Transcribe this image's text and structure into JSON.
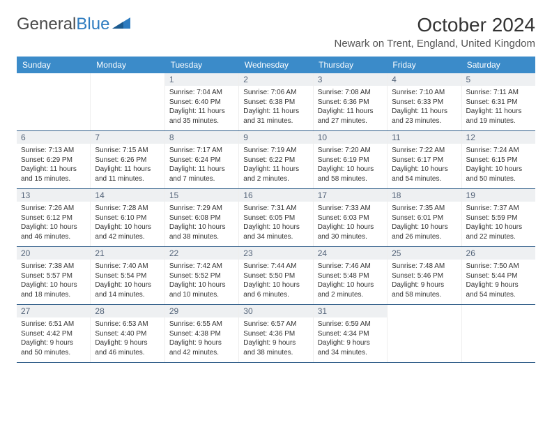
{
  "logo": {
    "text1": "General",
    "text2": "Blue"
  },
  "title": "October 2024",
  "location": "Newark on Trent, England, United Kingdom",
  "colors": {
    "header_bg": "#3b8bc9",
    "header_text": "#ffffff",
    "daynum_bg": "#eef0f2",
    "daynum_text": "#55657a",
    "week_border": "#2b5a86",
    "logo_blue": "#2e7cc0",
    "body_text": "#333333"
  },
  "dayHeaders": [
    "Sunday",
    "Monday",
    "Tuesday",
    "Wednesday",
    "Thursday",
    "Friday",
    "Saturday"
  ],
  "weeks": [
    [
      null,
      null,
      {
        "n": "1",
        "sr": "7:04 AM",
        "ss": "6:40 PM",
        "dl": "11 hours and 35 minutes."
      },
      {
        "n": "2",
        "sr": "7:06 AM",
        "ss": "6:38 PM",
        "dl": "11 hours and 31 minutes."
      },
      {
        "n": "3",
        "sr": "7:08 AM",
        "ss": "6:36 PM",
        "dl": "11 hours and 27 minutes."
      },
      {
        "n": "4",
        "sr": "7:10 AM",
        "ss": "6:33 PM",
        "dl": "11 hours and 23 minutes."
      },
      {
        "n": "5",
        "sr": "7:11 AM",
        "ss": "6:31 PM",
        "dl": "11 hours and 19 minutes."
      }
    ],
    [
      {
        "n": "6",
        "sr": "7:13 AM",
        "ss": "6:29 PM",
        "dl": "11 hours and 15 minutes."
      },
      {
        "n": "7",
        "sr": "7:15 AM",
        "ss": "6:26 PM",
        "dl": "11 hours and 11 minutes."
      },
      {
        "n": "8",
        "sr": "7:17 AM",
        "ss": "6:24 PM",
        "dl": "11 hours and 7 minutes."
      },
      {
        "n": "9",
        "sr": "7:19 AM",
        "ss": "6:22 PM",
        "dl": "11 hours and 2 minutes."
      },
      {
        "n": "10",
        "sr": "7:20 AM",
        "ss": "6:19 PM",
        "dl": "10 hours and 58 minutes."
      },
      {
        "n": "11",
        "sr": "7:22 AM",
        "ss": "6:17 PM",
        "dl": "10 hours and 54 minutes."
      },
      {
        "n": "12",
        "sr": "7:24 AM",
        "ss": "6:15 PM",
        "dl": "10 hours and 50 minutes."
      }
    ],
    [
      {
        "n": "13",
        "sr": "7:26 AM",
        "ss": "6:12 PM",
        "dl": "10 hours and 46 minutes."
      },
      {
        "n": "14",
        "sr": "7:28 AM",
        "ss": "6:10 PM",
        "dl": "10 hours and 42 minutes."
      },
      {
        "n": "15",
        "sr": "7:29 AM",
        "ss": "6:08 PM",
        "dl": "10 hours and 38 minutes."
      },
      {
        "n": "16",
        "sr": "7:31 AM",
        "ss": "6:05 PM",
        "dl": "10 hours and 34 minutes."
      },
      {
        "n": "17",
        "sr": "7:33 AM",
        "ss": "6:03 PM",
        "dl": "10 hours and 30 minutes."
      },
      {
        "n": "18",
        "sr": "7:35 AM",
        "ss": "6:01 PM",
        "dl": "10 hours and 26 minutes."
      },
      {
        "n": "19",
        "sr": "7:37 AM",
        "ss": "5:59 PM",
        "dl": "10 hours and 22 minutes."
      }
    ],
    [
      {
        "n": "20",
        "sr": "7:38 AM",
        "ss": "5:57 PM",
        "dl": "10 hours and 18 minutes."
      },
      {
        "n": "21",
        "sr": "7:40 AM",
        "ss": "5:54 PM",
        "dl": "10 hours and 14 minutes."
      },
      {
        "n": "22",
        "sr": "7:42 AM",
        "ss": "5:52 PM",
        "dl": "10 hours and 10 minutes."
      },
      {
        "n": "23",
        "sr": "7:44 AM",
        "ss": "5:50 PM",
        "dl": "10 hours and 6 minutes."
      },
      {
        "n": "24",
        "sr": "7:46 AM",
        "ss": "5:48 PM",
        "dl": "10 hours and 2 minutes."
      },
      {
        "n": "25",
        "sr": "7:48 AM",
        "ss": "5:46 PM",
        "dl": "9 hours and 58 minutes."
      },
      {
        "n": "26",
        "sr": "7:50 AM",
        "ss": "5:44 PM",
        "dl": "9 hours and 54 minutes."
      }
    ],
    [
      {
        "n": "27",
        "sr": "6:51 AM",
        "ss": "4:42 PM",
        "dl": "9 hours and 50 minutes."
      },
      {
        "n": "28",
        "sr": "6:53 AM",
        "ss": "4:40 PM",
        "dl": "9 hours and 46 minutes."
      },
      {
        "n": "29",
        "sr": "6:55 AM",
        "ss": "4:38 PM",
        "dl": "9 hours and 42 minutes."
      },
      {
        "n": "30",
        "sr": "6:57 AM",
        "ss": "4:36 PM",
        "dl": "9 hours and 38 minutes."
      },
      {
        "n": "31",
        "sr": "6:59 AM",
        "ss": "4:34 PM",
        "dl": "9 hours and 34 minutes."
      },
      null,
      null
    ]
  ],
  "labels": {
    "sunrise": "Sunrise: ",
    "sunset": "Sunset: ",
    "daylight": "Daylight: "
  }
}
